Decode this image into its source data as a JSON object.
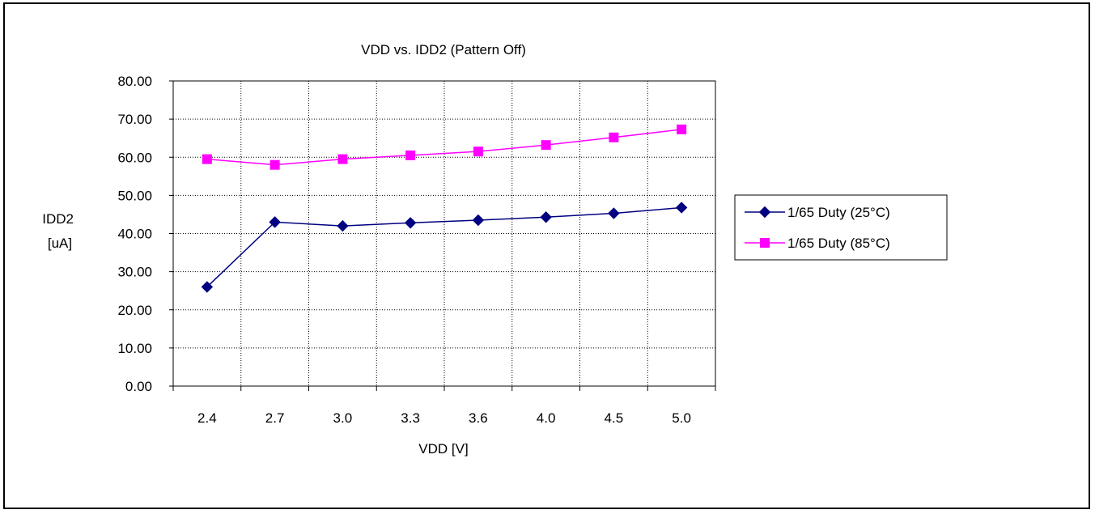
{
  "chart_data": {
    "type": "line",
    "title": "VDD vs. IDD2 (Pattern Off)",
    "xlabel": "VDD [V]",
    "ylabel": "IDD2 [uA]",
    "ylabel_lines": [
      "IDD2",
      "[uA]"
    ],
    "categories": [
      "2.4",
      "2.7",
      "3.0",
      "3.3",
      "3.6",
      "4.0",
      "4.5",
      "5.0"
    ],
    "ylim": [
      0,
      80
    ],
    "yticks": [
      "0.00",
      "10.00",
      "20.00",
      "30.00",
      "40.00",
      "50.00",
      "60.00",
      "70.00",
      "80.00"
    ],
    "grid": true,
    "legend_position": "right",
    "series": [
      {
        "name": "1/65 Duty (25°C)",
        "marker": "diamond",
        "color": "#000080",
        "values": [
          26.0,
          43.0,
          42.0,
          42.8,
          43.5,
          44.3,
          45.3,
          46.8
        ]
      },
      {
        "name": "1/65 Duty (85°C)",
        "marker": "square",
        "color": "#ff00ff",
        "values": [
          59.5,
          58.0,
          59.5,
          60.5,
          61.5,
          63.2,
          65.2,
          67.3
        ]
      }
    ]
  }
}
